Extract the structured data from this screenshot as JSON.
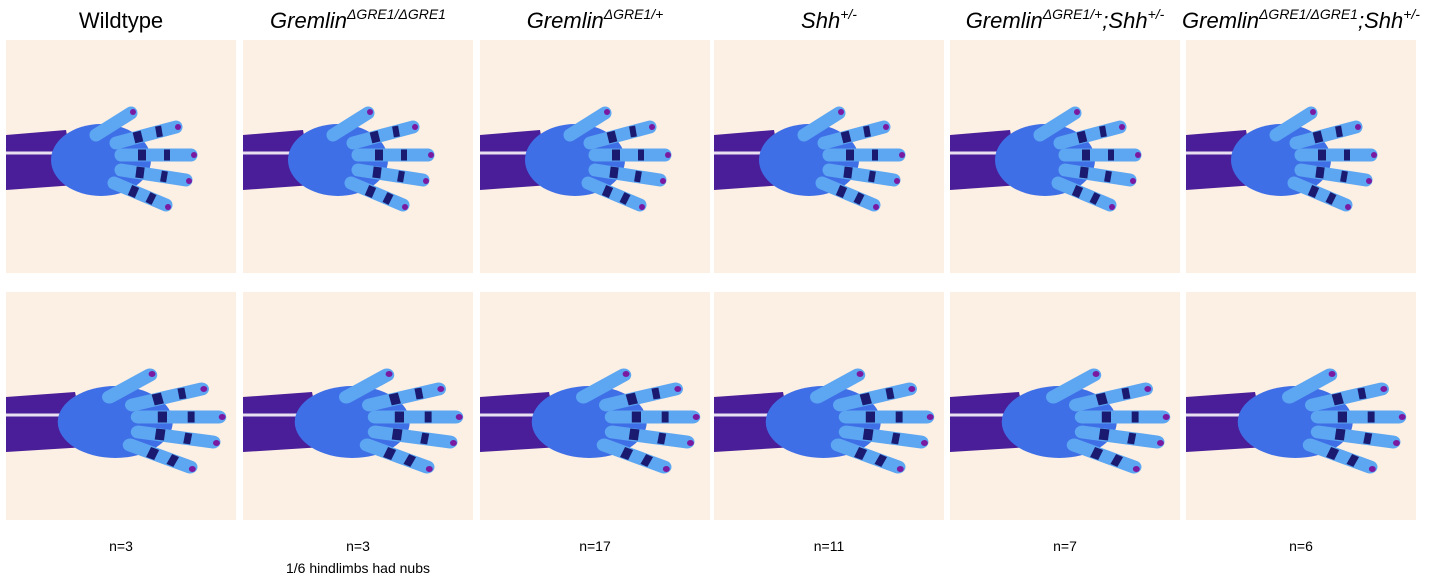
{
  "columns": [
    {
      "title": [
        {
          "text": "Wildtype"
        }
      ],
      "italic": false,
      "n": "n=3"
    },
    {
      "title": [
        {
          "text": "Gremlin",
          "sup": "ΔGRE1/ΔGRE1"
        }
      ],
      "italic": true,
      "n": "n=3",
      "note": "1/6 hindlimbs had nubs"
    },
    {
      "title": [
        {
          "text": "Gremlin",
          "sup": "ΔGRE1/+"
        }
      ],
      "italic": true,
      "n": "n=17"
    },
    {
      "title": [
        {
          "text": "Shh",
          "sup": "+/-"
        }
      ],
      "italic": true,
      "n": "n=11"
    },
    {
      "title": [
        {
          "text": "Gremlin",
          "sup": "ΔGRE1/+"
        },
        {
          "text": ";Shh",
          "sup": "+/-"
        }
      ],
      "italic": true,
      "n": "n=7"
    },
    {
      "title": [
        {
          "text": "Gremlin",
          "sup": "ΔGRE1/ΔGRE1"
        },
        {
          "text": ";Shh",
          "sup": "+/-"
        }
      ],
      "italic": true,
      "n": "n=6"
    }
  ]
}
